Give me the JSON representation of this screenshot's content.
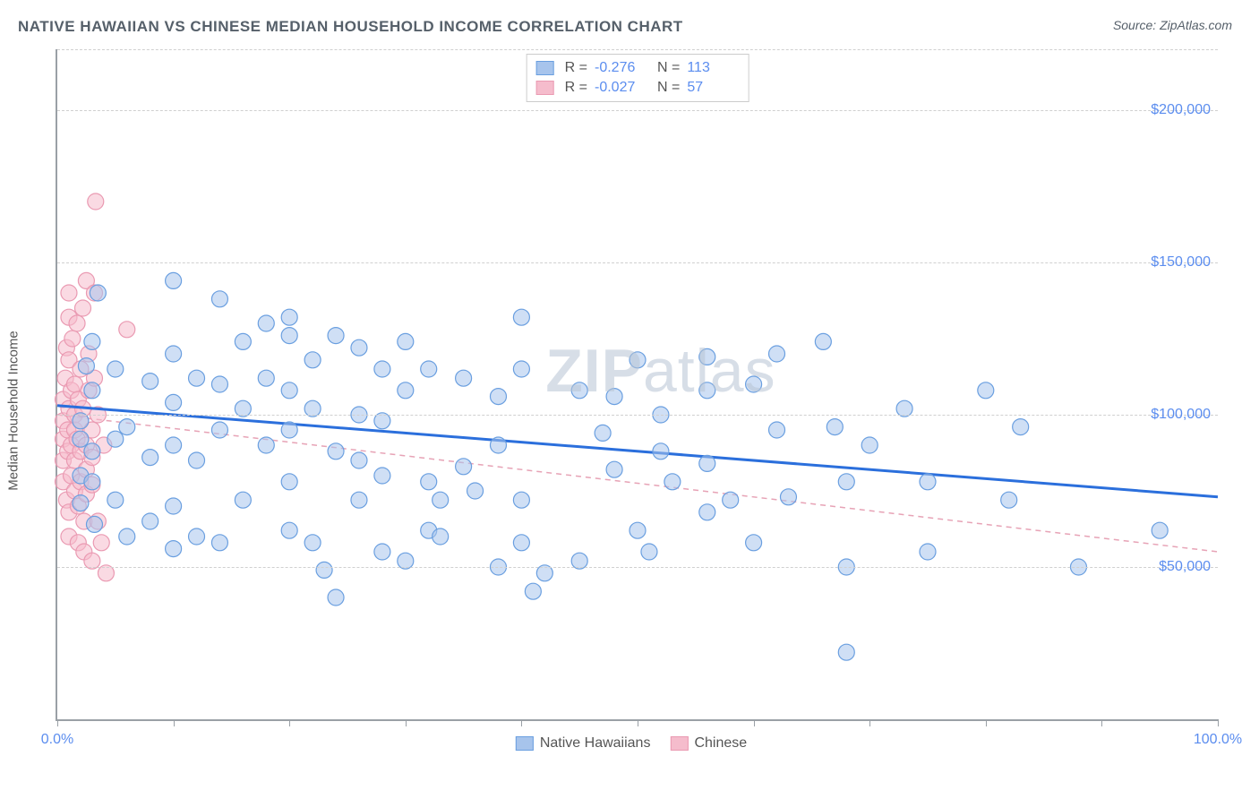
{
  "header": {
    "title": "NATIVE HAWAIIAN VS CHINESE MEDIAN HOUSEHOLD INCOME CORRELATION CHART",
    "source": "Source: ZipAtlas.com"
  },
  "chart": {
    "type": "scatter",
    "y_axis_label": "Median Household Income",
    "xlim": [
      0,
      100
    ],
    "ylim": [
      0,
      220000
    ],
    "x_ticks": [
      0,
      10,
      20,
      30,
      40,
      50,
      60,
      70,
      80,
      90,
      100
    ],
    "x_tick_labels_shown": {
      "0": "0.0%",
      "100": "100.0%"
    },
    "y_gridlines": [
      50000,
      100000,
      150000,
      200000,
      220000
    ],
    "y_tick_labels": {
      "50000": "$50,000",
      "100000": "$100,000",
      "150000": "$150,000",
      "200000": "$200,000"
    },
    "background_color": "#ffffff",
    "grid_color": "#d0d0d0",
    "axis_color": "#9aa0a6",
    "axis_label_color": "#5b8def",
    "watermark_text_bold": "ZIP",
    "watermark_text_rest": "atlas",
    "watermark_color": "#b8c4d4"
  },
  "series": {
    "hawaiian": {
      "label": "Native Hawaiians",
      "fill_color": "#a7c4ec",
      "stroke_color": "#6a9fe0",
      "fill_opacity": 0.55,
      "marker_radius": 9,
      "regression": {
        "y_at_x0": 103000,
        "y_at_x100": 73000,
        "stroke": "#2b6fdc",
        "width": 3,
        "dash": "none"
      },
      "R": "-0.276",
      "N": "113",
      "points": [
        [
          2,
          98000
        ],
        [
          2,
          92000
        ],
        [
          2,
          80000
        ],
        [
          2,
          71000
        ],
        [
          2.5,
          116000
        ],
        [
          3,
          108000
        ],
        [
          3,
          124000
        ],
        [
          3,
          88000
        ],
        [
          3,
          78000
        ],
        [
          3.2,
          64000
        ],
        [
          3.5,
          140000
        ],
        [
          5,
          115000
        ],
        [
          5,
          92000
        ],
        [
          5,
          72000
        ],
        [
          6,
          96000
        ],
        [
          6,
          60000
        ],
        [
          8,
          111000
        ],
        [
          8,
          86000
        ],
        [
          8,
          65000
        ],
        [
          10,
          144000
        ],
        [
          10,
          120000
        ],
        [
          10,
          104000
        ],
        [
          10,
          90000
        ],
        [
          10,
          70000
        ],
        [
          10,
          56000
        ],
        [
          12,
          112000
        ],
        [
          12,
          85000
        ],
        [
          12,
          60000
        ],
        [
          14,
          138000
        ],
        [
          14,
          110000
        ],
        [
          14,
          95000
        ],
        [
          14,
          58000
        ],
        [
          16,
          124000
        ],
        [
          16,
          102000
        ],
        [
          16,
          72000
        ],
        [
          18,
          112000
        ],
        [
          18,
          90000
        ],
        [
          18,
          130000
        ],
        [
          20,
          132000
        ],
        [
          20,
          126000
        ],
        [
          20,
          108000
        ],
        [
          20,
          95000
        ],
        [
          20,
          78000
        ],
        [
          20,
          62000
        ],
        [
          22,
          118000
        ],
        [
          22,
          102000
        ],
        [
          22,
          58000
        ],
        [
          23,
          49000
        ],
        [
          24,
          126000
        ],
        [
          24,
          88000
        ],
        [
          24,
          40000
        ],
        [
          26,
          122000
        ],
        [
          26,
          100000
        ],
        [
          26,
          85000
        ],
        [
          26,
          72000
        ],
        [
          28,
          115000
        ],
        [
          28,
          98000
        ],
        [
          28,
          80000
        ],
        [
          28,
          55000
        ],
        [
          30,
          124000
        ],
        [
          30,
          108000
        ],
        [
          30,
          52000
        ],
        [
          32,
          115000
        ],
        [
          32,
          62000
        ],
        [
          32,
          78000
        ],
        [
          33,
          60000
        ],
        [
          33,
          72000
        ],
        [
          35,
          112000
        ],
        [
          35,
          83000
        ],
        [
          36,
          75000
        ],
        [
          38,
          106000
        ],
        [
          38,
          90000
        ],
        [
          38,
          50000
        ],
        [
          40,
          132000
        ],
        [
          40,
          115000
        ],
        [
          40,
          72000
        ],
        [
          40,
          58000
        ],
        [
          41,
          42000
        ],
        [
          42,
          48000
        ],
        [
          45,
          108000
        ],
        [
          45,
          52000
        ],
        [
          47,
          94000
        ],
        [
          48,
          82000
        ],
        [
          48,
          106000
        ],
        [
          50,
          118000
        ],
        [
          50,
          62000
        ],
        [
          51,
          55000
        ],
        [
          52,
          88000
        ],
        [
          52,
          100000
        ],
        [
          53,
          78000
        ],
        [
          56,
          108000
        ],
        [
          56,
          119000
        ],
        [
          56,
          84000
        ],
        [
          56,
          68000
        ],
        [
          58,
          72000
        ],
        [
          60,
          110000
        ],
        [
          60,
          58000
        ],
        [
          62,
          120000
        ],
        [
          62,
          95000
        ],
        [
          63,
          73000
        ],
        [
          66,
          124000
        ],
        [
          67,
          96000
        ],
        [
          68,
          50000
        ],
        [
          68,
          78000
        ],
        [
          70,
          90000
        ],
        [
          73,
          102000
        ],
        [
          75,
          55000
        ],
        [
          75,
          78000
        ],
        [
          80,
          108000
        ],
        [
          82,
          72000
        ],
        [
          83,
          96000
        ],
        [
          88,
          50000
        ],
        [
          95,
          62000
        ],
        [
          68,
          22000
        ]
      ]
    },
    "chinese": {
      "label": "Chinese",
      "fill_color": "#f5bccc",
      "stroke_color": "#ea9ab2",
      "fill_opacity": 0.55,
      "marker_radius": 9,
      "regression": {
        "y_at_x0": 100000,
        "y_at_x100": 55000,
        "stroke": "#e7a3b6",
        "width": 1.5,
        "dash": "6,5"
      },
      "R": "-0.027",
      "N": "57",
      "points": [
        [
          0.5,
          98000
        ],
        [
          0.5,
          92000
        ],
        [
          0.5,
          85000
        ],
        [
          0.5,
          78000
        ],
        [
          0.5,
          105000
        ],
        [
          0.7,
          112000
        ],
        [
          0.8,
          72000
        ],
        [
          0.8,
          122000
        ],
        [
          0.9,
          88000
        ],
        [
          0.9,
          95000
        ],
        [
          1,
          102000
        ],
        [
          1,
          118000
        ],
        [
          1,
          132000
        ],
        [
          1,
          140000
        ],
        [
          1,
          68000
        ],
        [
          1,
          60000
        ],
        [
          1.2,
          90000
        ],
        [
          1.2,
          80000
        ],
        [
          1.2,
          108000
        ],
        [
          1.3,
          125000
        ],
        [
          1.5,
          95000
        ],
        [
          1.5,
          100000
        ],
        [
          1.5,
          85000
        ],
        [
          1.5,
          75000
        ],
        [
          1.5,
          110000
        ],
        [
          1.7,
          130000
        ],
        [
          1.7,
          92000
        ],
        [
          1.8,
          105000
        ],
        [
          1.8,
          70000
        ],
        [
          1.8,
          58000
        ],
        [
          2,
          88000
        ],
        [
          2,
          98000
        ],
        [
          2,
          115000
        ],
        [
          2,
          78000
        ],
        [
          2.2,
          135000
        ],
        [
          2.2,
          102000
        ],
        [
          2.3,
          65000
        ],
        [
          2.3,
          55000
        ],
        [
          2.5,
          144000
        ],
        [
          2.5,
          90000
        ],
        [
          2.5,
          82000
        ],
        [
          2.5,
          74000
        ],
        [
          2.7,
          108000
        ],
        [
          2.7,
          120000
        ],
        [
          3,
          95000
        ],
        [
          3,
          86000
        ],
        [
          3,
          77000
        ],
        [
          3,
          52000
        ],
        [
          3.2,
          140000
        ],
        [
          3.2,
          112000
        ],
        [
          3.3,
          170000
        ],
        [
          3.5,
          100000
        ],
        [
          3.5,
          65000
        ],
        [
          3.8,
          58000
        ],
        [
          4,
          90000
        ],
        [
          4.2,
          48000
        ],
        [
          6,
          128000
        ]
      ]
    }
  },
  "bottom_legend": [
    {
      "label": "Native Hawaiians",
      "fill": "#a7c4ec",
      "stroke": "#6a9fe0"
    },
    {
      "label": "Chinese",
      "fill": "#f5bccc",
      "stroke": "#ea9ab2"
    }
  ],
  "stats_legend_keys": [
    "hawaiian",
    "chinese"
  ]
}
